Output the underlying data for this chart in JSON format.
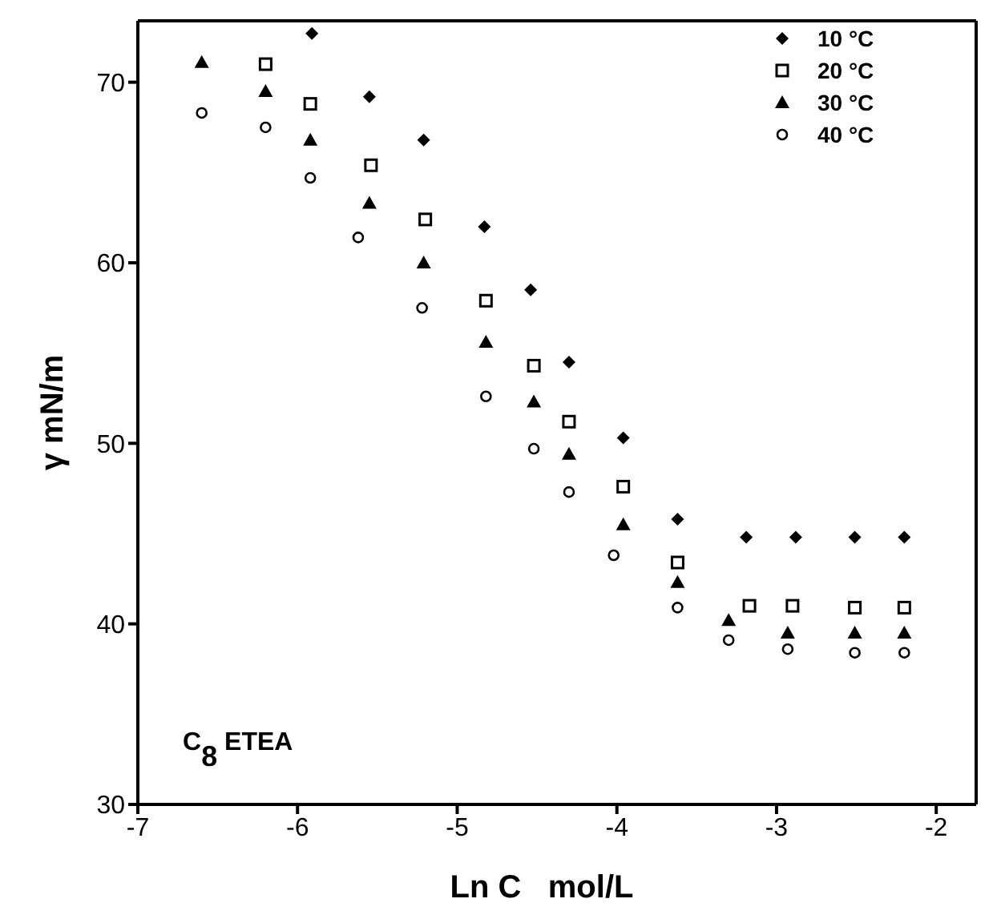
{
  "chart_data": {
    "type": "scatter",
    "xlabel": "Ln C   mol/L",
    "ylabel": "γ mN/m",
    "annotations": [
      "C$_{8}$ ETEA"
    ],
    "xlim": [
      -7,
      -1.75
    ],
    "xticks": [
      -7,
      -6,
      -5,
      -4,
      -3,
      -2
    ],
    "ylim": [
      30,
      73.4
    ],
    "yticks": [
      30,
      40,
      50,
      60,
      70
    ],
    "grid": false,
    "legend": "top right",
    "series": [
      {
        "name": "10 °C",
        "color": "#000000",
        "marker": "diamond",
        "x": [
          -5.91,
          -5.55,
          -5.21,
          -4.83,
          -4.54,
          -4.3,
          -3.96,
          -3.62,
          -3.19,
          -2.88,
          -2.51,
          -2.2
        ],
        "values": [
          72.7,
          69.2,
          66.8,
          62.0,
          58.5,
          54.5,
          50.3,
          45.8,
          44.8,
          44.8,
          44.8,
          44.8
        ]
      },
      {
        "name": "20 °C",
        "color": "#000000",
        "marker": "square",
        "x": [
          -6.2,
          -5.92,
          -5.54,
          -5.2,
          -4.82,
          -4.52,
          -4.3,
          -3.96,
          -3.62,
          -3.17,
          -2.9,
          -2.51,
          -2.2
        ],
        "values": [
          71.0,
          68.8,
          65.4,
          62.4,
          57.9,
          54.3,
          51.2,
          47.6,
          43.4,
          41.0,
          41.0,
          40.9,
          40.9
        ]
      },
      {
        "name": "30 °C",
        "color": "#000000",
        "marker": "triangle",
        "x": [
          -6.6,
          -6.2,
          -5.92,
          -5.55,
          -5.21,
          -4.82,
          -4.52,
          -4.3,
          -3.96,
          -3.62,
          -3.3,
          -2.93,
          -2.51,
          -2.2
        ],
        "values": [
          71.1,
          69.5,
          66.8,
          63.3,
          60.0,
          55.6,
          52.3,
          49.4,
          45.5,
          42.3,
          40.2,
          39.5,
          39.5,
          39.5
        ]
      },
      {
        "name": "40 °C",
        "color": "#000000",
        "marker": "circle",
        "x": [
          -6.6,
          -6.2,
          -5.92,
          -5.62,
          -5.22,
          -4.82,
          -4.52,
          -4.3,
          -4.02,
          -3.62,
          -3.3,
          -2.93,
          -2.51,
          -2.2
        ],
        "values": [
          68.3,
          67.5,
          64.7,
          61.4,
          57.5,
          52.6,
          49.7,
          47.3,
          43.8,
          40.9,
          39.1,
          38.6,
          38.4,
          38.4
        ]
      }
    ]
  }
}
